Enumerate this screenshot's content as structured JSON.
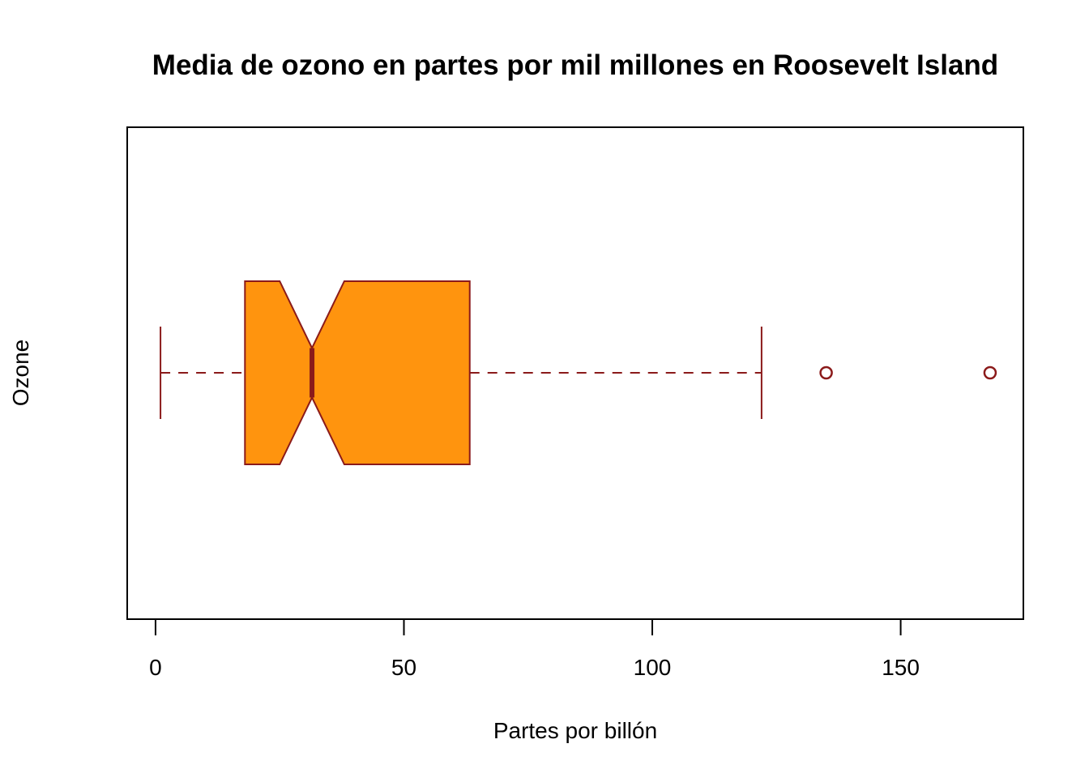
{
  "chart_data": {
    "type": "boxplot",
    "orientation": "horizontal",
    "notched": true,
    "title": "Media de ozono en partes por mil millones en Roosevelt Island",
    "xlabel": "Partes por billón",
    "ylabel": "Ozone",
    "xlim": [
      -5.7,
      174.7
    ],
    "xticks": [
      0,
      50,
      100,
      150
    ],
    "xtick_labels": [
      "0",
      "50",
      "100",
      "150"
    ],
    "box": {
      "whisker_low": 1,
      "q1": 18,
      "median": 31.5,
      "q3": 63.25,
      "whisker_high": 122,
      "notch_low": 25,
      "notch_high": 38,
      "outliers": [
        135,
        168
      ]
    },
    "colors": {
      "fill": "#FF940E",
      "border": "#8B1A1A",
      "median": "#8B1A1A"
    }
  }
}
